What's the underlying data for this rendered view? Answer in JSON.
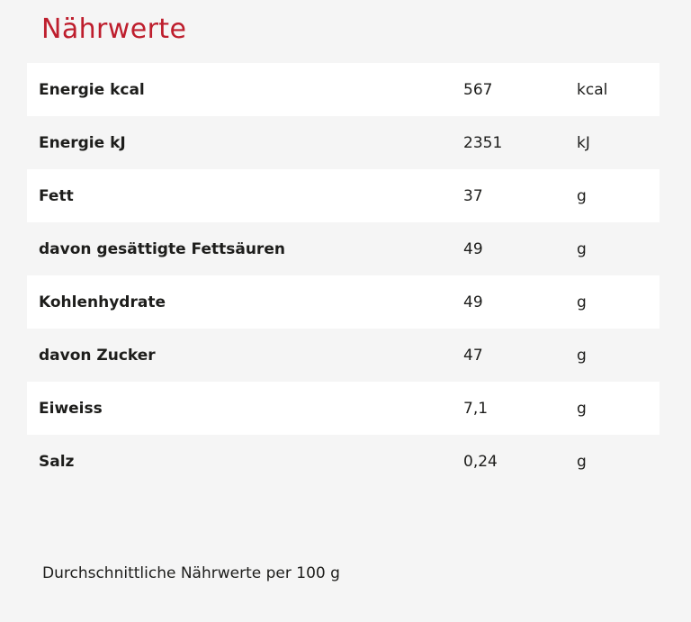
{
  "page": {
    "background_color": "#f5f5f5",
    "row_color": "#ffffff",
    "text_color": "#1d1d1b",
    "accent_red": "#be1e2d"
  },
  "title": "Nährwerte",
  "table": {
    "rows": [
      {
        "label": "Energie kcal",
        "value": "567",
        "unit": "kcal"
      },
      {
        "label": "Energie kJ",
        "value": "2351",
        "unit": "kJ"
      },
      {
        "label": "Fett",
        "value": "37",
        "unit": "g"
      },
      {
        "label": "davon gesättigte Fettsäuren",
        "value": "49",
        "unit": "g"
      },
      {
        "label": "Kohlenhydrate",
        "value": "49",
        "unit": "g"
      },
      {
        "label": "davon Zucker",
        "value": "47",
        "unit": "g"
      },
      {
        "label": "Eiweiss",
        "value": "7,1",
        "unit": "g"
      },
      {
        "label": "Salz",
        "value": "0,24",
        "unit": "g"
      }
    ]
  },
  "footer": {
    "note": "Durchschnittliche Nährwerte per 100 g"
  }
}
